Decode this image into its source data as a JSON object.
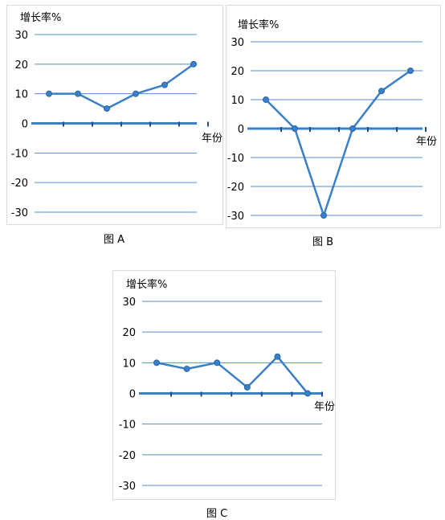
{
  "chart_data": [
    {
      "type": "line",
      "caption": "图 A",
      "ylabel": "增长率%",
      "xlabel": "年份",
      "ylim": [
        -30,
        30
      ],
      "y_ticks": [
        30,
        20,
        10,
        0,
        -10,
        -20,
        -30
      ],
      "y_tick_labels": [
        "30",
        "20",
        "10",
        "0",
        "-10",
        "-20",
        "-30"
      ],
      "grid": true,
      "line_color": "#3a7fc8",
      "grid_color": "#4f8fd6",
      "series": [
        {
          "values": [
            10,
            10,
            5,
            10,
            13,
            20
          ]
        }
      ]
    },
    {
      "type": "line",
      "caption": "图 B",
      "ylabel": "增长率%",
      "xlabel": "年份",
      "ylim": [
        -30,
        30
      ],
      "y_ticks": [
        30,
        20,
        10,
        0,
        -10,
        -20,
        -30
      ],
      "y_tick_labels": [
        "30",
        "20",
        "10",
        "0",
        "-10",
        "-20",
        "-30"
      ],
      "grid": true,
      "line_color": "#3a7fc8",
      "grid_color": "#4f8fd6",
      "series": [
        {
          "values": [
            10,
            0,
            -30,
            0,
            13,
            20
          ]
        }
      ]
    },
    {
      "type": "line",
      "caption": "图 C",
      "ylabel": "增长率%",
      "xlabel": "年份",
      "ylim": [
        -30,
        30
      ],
      "y_ticks": [
        30,
        20,
        10,
        0,
        -10,
        -20,
        -30
      ],
      "y_tick_labels": [
        "30",
        "20",
        "10",
        "0",
        "-10",
        "-20",
        "-30"
      ],
      "grid": true,
      "line_color": "#3a7fc8",
      "grid_color": "#4f8fd6",
      "series": [
        {
          "values": [
            10,
            8,
            10,
            2,
            12,
            0
          ]
        }
      ]
    }
  ]
}
